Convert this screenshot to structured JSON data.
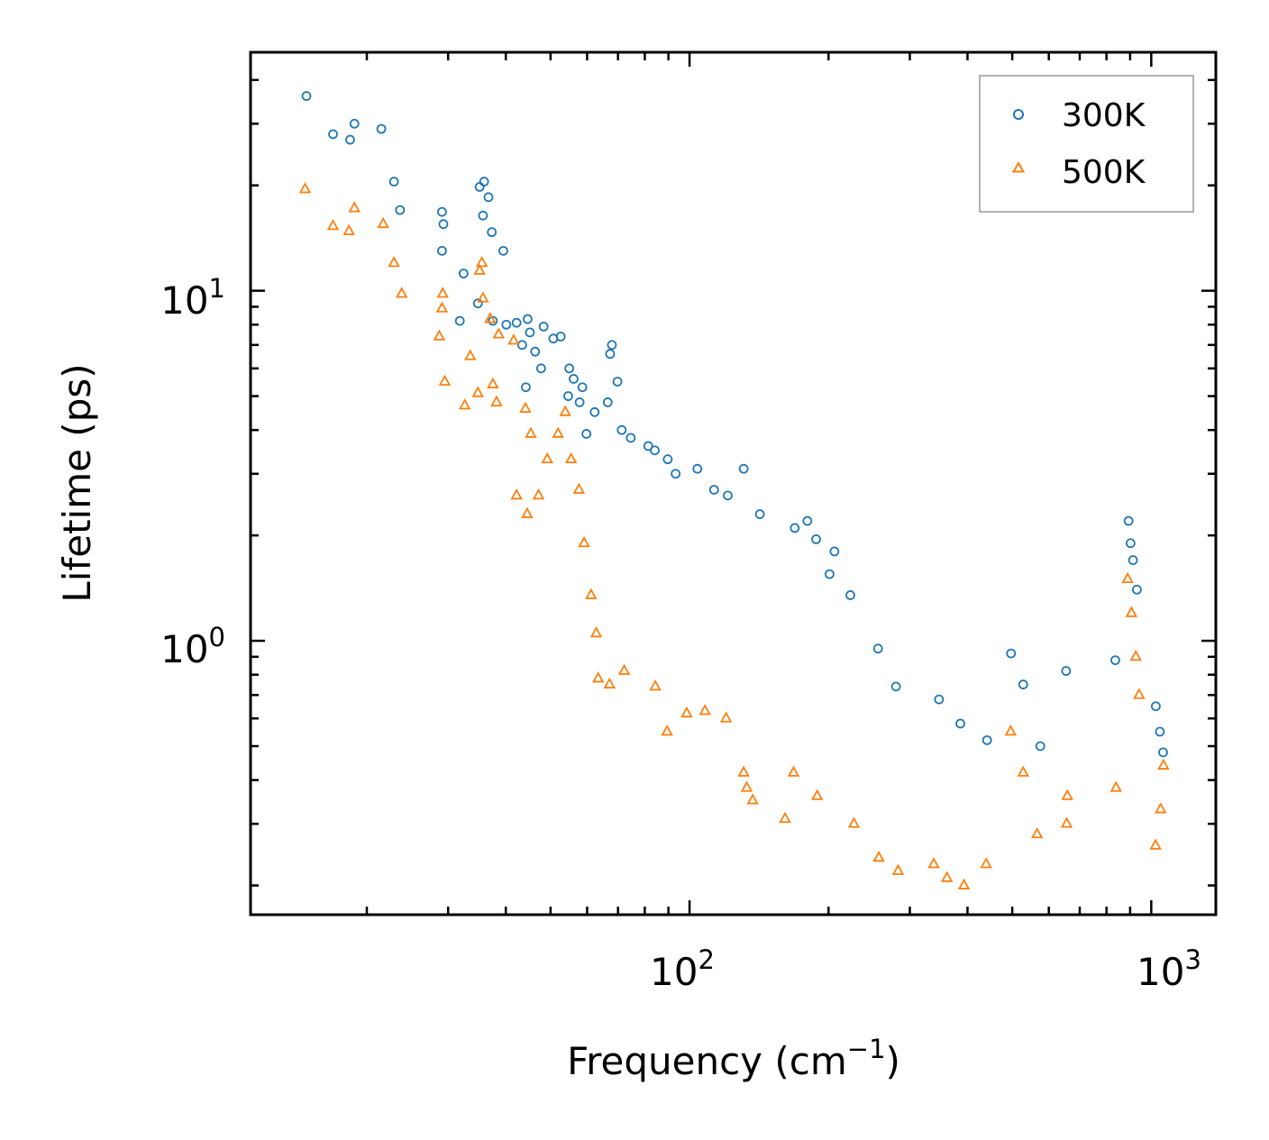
{
  "chart_data": {
    "type": "scatter",
    "title": "",
    "xlabel": {
      "base": "Frequency (cm",
      "sup": "−1",
      "tail": ")"
    },
    "ylabel": "Lifetime (ps)",
    "xscale": "log",
    "yscale": "log",
    "xlim": [
      11.2,
      1380
    ],
    "ylim": [
      0.165,
      48
    ],
    "x_ticks": [
      {
        "value": 100,
        "base": "10",
        "exp": "2"
      },
      {
        "value": 1000,
        "base": "10",
        "exp": "3"
      }
    ],
    "y_ticks": [
      {
        "value": 1,
        "base": "10",
        "exp": "0"
      },
      {
        "value": 10,
        "base": "10",
        "exp": "1"
      }
    ],
    "legend": {
      "placement": "top-right",
      "frame": true
    },
    "colors": {
      "300K": "#1f77b4",
      "500K": "#ff7f0e",
      "axis": "#000000",
      "legend_frame": "#999999"
    },
    "series": [
      {
        "name": "300K",
        "marker": "circle",
        "color": "#1f77b4",
        "points": [
          [
            14.8,
            36
          ],
          [
            16.9,
            28
          ],
          [
            18.4,
            27
          ],
          [
            18.8,
            30
          ],
          [
            21.5,
            29
          ],
          [
            22.9,
            20.5
          ],
          [
            23.6,
            17
          ],
          [
            29.1,
            16.8
          ],
          [
            29.3,
            15.5
          ],
          [
            29.1,
            13
          ],
          [
            32.4,
            11.2
          ],
          [
            31.8,
            8.2
          ],
          [
            35.1,
            19.8
          ],
          [
            35.9,
            20.5
          ],
          [
            36.7,
            18.5
          ],
          [
            35.7,
            16.4
          ],
          [
            37.3,
            14.7
          ],
          [
            39.5,
            13.0
          ],
          [
            34.8,
            9.2
          ],
          [
            37.5,
            8.2
          ],
          [
            40.1,
            8.0
          ],
          [
            42.2,
            8.1
          ],
          [
            44.6,
            8.3
          ],
          [
            45.1,
            7.6
          ],
          [
            48.3,
            7.9
          ],
          [
            43.4,
            7.0
          ],
          [
            46.3,
            6.7
          ],
          [
            50.7,
            7.3
          ],
          [
            52.6,
            7.4
          ],
          [
            47.7,
            6.0
          ],
          [
            44.2,
            5.3
          ],
          [
            54.9,
            6.0
          ],
          [
            56.1,
            5.6
          ],
          [
            58.6,
            5.3
          ],
          [
            54.6,
            5.0
          ],
          [
            57.8,
            4.8
          ],
          [
            62.3,
            4.5
          ],
          [
            67.3,
            6.6
          ],
          [
            67.9,
            7.0
          ],
          [
            69.8,
            5.5
          ],
          [
            66.5,
            4.8
          ],
          [
            59.8,
            3.9
          ],
          [
            71.3,
            4.0
          ],
          [
            74.6,
            3.8
          ],
          [
            81.4,
            3.6
          ],
          [
            84.1,
            3.5
          ],
          [
            89.7,
            3.3
          ],
          [
            93.3,
            3.0
          ],
          [
            104,
            3.1
          ],
          [
            113,
            2.7
          ],
          [
            131,
            3.1
          ],
          [
            121,
            2.6
          ],
          [
            142,
            2.3
          ],
          [
            169,
            2.1
          ],
          [
            180,
            2.2
          ],
          [
            188,
            1.95
          ],
          [
            206,
            1.8
          ],
          [
            201,
            1.55
          ],
          [
            223,
            1.35
          ],
          [
            256,
            0.95
          ],
          [
            280,
            0.74
          ],
          [
            347,
            0.68
          ],
          [
            386,
            0.58
          ],
          [
            441,
            0.52
          ],
          [
            497,
            0.92
          ],
          [
            528,
            0.75
          ],
          [
            575,
            0.5
          ],
          [
            654,
            0.82
          ],
          [
            836,
            0.88
          ],
          [
            893,
            2.2
          ],
          [
            902,
            1.9
          ],
          [
            913,
            1.7
          ],
          [
            931,
            1.4
          ],
          [
            1023,
            0.65
          ],
          [
            1044,
            0.55
          ],
          [
            1061,
            0.48
          ]
        ]
      },
      {
        "name": "500K",
        "marker": "triangle",
        "color": "#ff7f0e",
        "points": [
          [
            14.7,
            19.5
          ],
          [
            16.9,
            15.3
          ],
          [
            18.3,
            14.8
          ],
          [
            18.8,
            17.2
          ],
          [
            21.7,
            15.5
          ],
          [
            22.9,
            12.0
          ],
          [
            23.8,
            9.8
          ],
          [
            29.2,
            9.8
          ],
          [
            29.1,
            8.9
          ],
          [
            28.7,
            7.4
          ],
          [
            29.5,
            5.5
          ],
          [
            33.5,
            6.5
          ],
          [
            32.6,
            4.7
          ],
          [
            34.8,
            5.1
          ],
          [
            35.5,
            12.0
          ],
          [
            35.1,
            11.4
          ],
          [
            35.7,
            9.5
          ],
          [
            37.0,
            8.3
          ],
          [
            38.6,
            7.5
          ],
          [
            37.5,
            5.4
          ],
          [
            38.2,
            4.8
          ],
          [
            41.6,
            7.2
          ],
          [
            44.1,
            4.6
          ],
          [
            45.3,
            3.9
          ],
          [
            42.2,
            2.6
          ],
          [
            44.5,
            2.3
          ],
          [
            47.1,
            2.6
          ],
          [
            49.2,
            3.3
          ],
          [
            51.9,
            3.9
          ],
          [
            53.8,
            4.5
          ],
          [
            55.4,
            3.3
          ],
          [
            57.6,
            2.7
          ],
          [
            59.1,
            1.9
          ],
          [
            61.2,
            1.35
          ],
          [
            62.8,
            1.05
          ],
          [
            63.4,
            0.78
          ],
          [
            67.1,
            0.75
          ],
          [
            72.2,
            0.82
          ],
          [
            84.3,
            0.74
          ],
          [
            89.4,
            0.55
          ],
          [
            98.6,
            0.62
          ],
          [
            108,
            0.63
          ],
          [
            120,
            0.6
          ],
          [
            131,
            0.42
          ],
          [
            133,
            0.38
          ],
          [
            137,
            0.35
          ],
          [
            161,
            0.31
          ],
          [
            168,
            0.42
          ],
          [
            189,
            0.36
          ],
          [
            227,
            0.3
          ],
          [
            257,
            0.24
          ],
          [
            283,
            0.22
          ],
          [
            338,
            0.23
          ],
          [
            361,
            0.21
          ],
          [
            393,
            0.2
          ],
          [
            439,
            0.23
          ],
          [
            496,
            0.55
          ],
          [
            528,
            0.42
          ],
          [
            566,
            0.28
          ],
          [
            656,
            0.3
          ],
          [
            658,
            0.36
          ],
          [
            839,
            0.38
          ],
          [
            889,
            1.5
          ],
          [
            906,
            1.2
          ],
          [
            926,
            0.9
          ],
          [
            941,
            0.7
          ],
          [
            1022,
            0.26
          ],
          [
            1048,
            0.33
          ],
          [
            1063,
            0.44
          ]
        ]
      }
    ]
  }
}
